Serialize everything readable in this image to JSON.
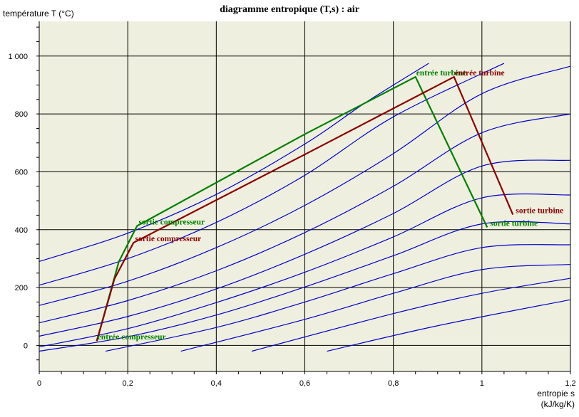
{
  "chart_data": {
    "type": "line",
    "title": "diagramme entropique (T,s) : air",
    "ylabel": "température  T  (°C)",
    "xlabel": [
      "entropie  s",
      "(kJ/kg/K)"
    ],
    "xlim": [
      0,
      1.2
    ],
    "ylim": [
      -90,
      1120
    ],
    "x_ticks": [
      0,
      0.2,
      0.4,
      0.6,
      0.8,
      1,
      1.2
    ],
    "x_tick_labels": [
      "0",
      "0,2",
      "0,4",
      "0,6",
      "0,8",
      "1",
      "1,2"
    ],
    "y_ticks": [
      0,
      200,
      400,
      600,
      800,
      1000
    ],
    "y_tick_labels": [
      "0",
      "200",
      "400",
      "600",
      "800",
      "1 000"
    ],
    "grid": true,
    "isobars": [
      {
        "points": [
          [
            0,
            290
          ],
          [
            0.2,
            388
          ],
          [
            0.4,
            522
          ],
          [
            0.6,
            696
          ],
          [
            0.74,
            842
          ],
          [
            0.88,
            975
          ]
        ]
      },
      {
        "points": [
          [
            0,
            208
          ],
          [
            0.2,
            300
          ],
          [
            0.4,
            425
          ],
          [
            0.6,
            588
          ],
          [
            0.8,
            790
          ],
          [
            1.05,
            975
          ]
        ]
      },
      {
        "points": [
          [
            0,
            138
          ],
          [
            0.2,
            222
          ],
          [
            0.4,
            338
          ],
          [
            0.6,
            484
          ],
          [
            0.8,
            663
          ],
          [
            1.0,
            870
          ],
          [
            1.2,
            965
          ]
        ]
      },
      {
        "points": [
          [
            0,
            78
          ],
          [
            0.2,
            155
          ],
          [
            0.4,
            258
          ],
          [
            0.6,
            390
          ],
          [
            0.8,
            550
          ],
          [
            1.0,
            735
          ],
          [
            1.2,
            800
          ]
        ]
      },
      {
        "points": [
          [
            0,
            32
          ],
          [
            0.2,
            100
          ],
          [
            0.4,
            195
          ],
          [
            0.6,
            315
          ],
          [
            0.8,
            456
          ],
          [
            1.0,
            620
          ],
          [
            1.2,
            640
          ]
        ]
      },
      {
        "points": [
          [
            0,
            -5
          ],
          [
            0.2,
            58
          ],
          [
            0.4,
            148
          ],
          [
            0.6,
            253
          ],
          [
            0.8,
            375
          ],
          [
            1.0,
            510
          ],
          [
            1.2,
            520
          ]
        ]
      },
      {
        "points": [
          [
            0,
            -20
          ],
          [
            0.2,
            30
          ],
          [
            0.4,
            105
          ],
          [
            0.6,
            202
          ],
          [
            0.8,
            310
          ],
          [
            1.0,
            420
          ],
          [
            1.2,
            420
          ]
        ]
      },
      {
        "points": [
          [
            0.15,
            -20
          ],
          [
            0.4,
            62
          ],
          [
            0.6,
            150
          ],
          [
            0.8,
            248
          ],
          [
            1.0,
            338
          ],
          [
            1.2,
            348
          ]
        ]
      },
      {
        "points": [
          [
            0.32,
            -20
          ],
          [
            0.6,
            90
          ],
          [
            0.8,
            180
          ],
          [
            1.0,
            262
          ],
          [
            1.2,
            280
          ]
        ]
      },
      {
        "points": [
          [
            0.48,
            -20
          ],
          [
            0.8,
            110
          ],
          [
            1.0,
            180
          ],
          [
            1.2,
            232
          ]
        ]
      },
      {
        "points": [
          [
            0.65,
            -20
          ],
          [
            0.9,
            68
          ],
          [
            1.2,
            158
          ]
        ]
      }
    ],
    "isobar_color": "#0000cc",
    "series": [
      {
        "color": "#008000",
        "points": [
          [
            0.13,
            15
          ],
          [
            0.18,
            290
          ],
          [
            0.221,
            413
          ],
          [
            0.6,
            730
          ],
          [
            0.85,
            928
          ],
          [
            1.012,
            408
          ]
        ]
      },
      {
        "color": "#8b0000",
        "points": [
          [
            0.13,
            15
          ],
          [
            0.17,
            230
          ],
          [
            0.213,
            355
          ],
          [
            0.6,
            660
          ],
          [
            0.937,
            928
          ],
          [
            1.07,
            452
          ]
        ]
      }
    ],
    "annotations": [
      {
        "text": "entrée compresseur",
        "x": 0.13,
        "y": 30,
        "color": "#008000"
      },
      {
        "text": "sortie compresseur",
        "x": 0.223,
        "y": 428,
        "color": "#008000"
      },
      {
        "text": "sortie compresseur",
        "x": 0.215,
        "y": 370,
        "color": "#8b0000"
      },
      {
        "text": "entrée turbine",
        "x": 0.85,
        "y": 943,
        "color": "#008000"
      },
      {
        "text": "entrée turbine",
        "x": 0.937,
        "y": 943,
        "color": "#8b0000"
      },
      {
        "text": "sortie turbine",
        "x": 1.017,
        "y": 423,
        "color": "#008000"
      },
      {
        "text": "sortie turbine",
        "x": 1.075,
        "y": 467,
        "color": "#8b0000"
      }
    ],
    "plot_background": "#efefdf"
  }
}
